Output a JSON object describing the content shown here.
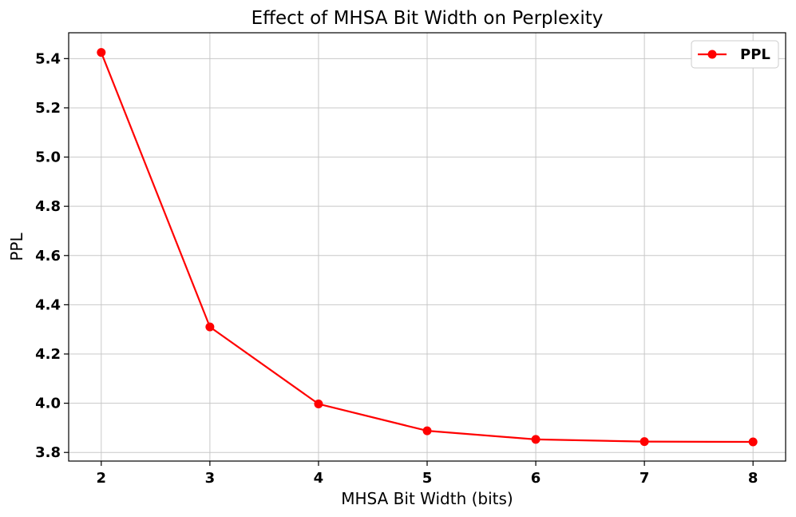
{
  "chart_data": {
    "type": "line",
    "title": "Effect of MHSA Bit Width on Perplexity",
    "xlabel": "MHSA Bit Width (bits)",
    "ylabel": "PPL",
    "x": [
      2,
      3,
      4,
      5,
      6,
      7,
      8
    ],
    "xticks": [
      "2",
      "3",
      "4",
      "5",
      "6",
      "7",
      "8"
    ],
    "yticks": [
      "3.8",
      "4.0",
      "4.2",
      "4.4",
      "4.6",
      "4.8",
      "5.0",
      "5.2",
      "5.4"
    ],
    "xlim": [
      1.7,
      8.3
    ],
    "ylim": [
      3.765,
      5.505
    ],
    "grid": true,
    "legend_position": "top-right",
    "series": [
      {
        "name": "PPL",
        "color": "#ff0000",
        "marker": "circle",
        "values": [
          5.425,
          4.31,
          3.997,
          3.888,
          3.853,
          3.844,
          3.843
        ]
      }
    ]
  }
}
